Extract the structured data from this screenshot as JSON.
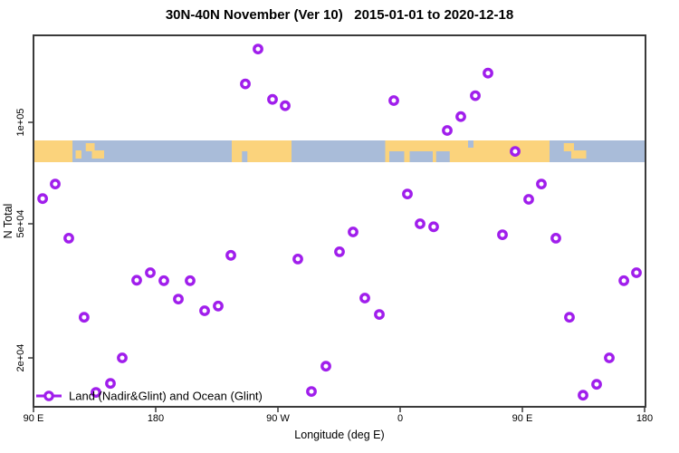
{
  "title": "30N-40N November (Ver 10)   2015-01-01 to 2020-12-18",
  "colors": {
    "marker": "#A01EEC",
    "ocean": "#A9BCD9",
    "land": "#FBD37C",
    "axis": "#3a3a3a",
    "text": "#000000"
  },
  "chart_data": {
    "type": "scatter",
    "title": "30N-40N November (Ver 10)   2015-01-01 to 2020-12-18",
    "xlabel": "Longitude (deg E)",
    "ylabel": "N Total",
    "grid": false,
    "legend_position": "bottom-left",
    "legend": {
      "label": "Land (Nadir&Glint) and Ocean (Glint)"
    },
    "x_axis": {
      "range_deg_e": [
        90,
        540
      ],
      "ticks": [
        {
          "lon": 90,
          "label": "90 E"
        },
        {
          "lon": 180,
          "label": "180"
        },
        {
          "lon": 270,
          "label": "90 W"
        },
        {
          "lon": 360,
          "label": "0"
        },
        {
          "lon": 450,
          "label": "90 E"
        },
        {
          "lon": 540,
          "label": "180"
        }
      ]
    },
    "y_axis": {
      "scale": "log10",
      "range": [
        14300,
        181000
      ],
      "ticks": [
        {
          "value": 100000,
          "label": "1e+05"
        },
        {
          "value": 50000,
          "label": "5e+04"
        },
        {
          "value": 20000,
          "label": "2e+04"
        }
      ]
    },
    "points": [
      {
        "lon": 96.7,
        "n": 59400
      },
      {
        "lon": 106.0,
        "n": 65600
      },
      {
        "lon": 116.0,
        "n": 45300
      },
      {
        "lon": 127.3,
        "n": 26400
      },
      {
        "lon": 136.0,
        "n": 15800
      },
      {
        "lon": 146.7,
        "n": 16800
      },
      {
        "lon": 155.3,
        "n": 20000
      },
      {
        "lon": 166.0,
        "n": 34000
      },
      {
        "lon": 176.0,
        "n": 35800
      },
      {
        "lon": 186.0,
        "n": 33900
      },
      {
        "lon": 196.7,
        "n": 29900
      },
      {
        "lon": 205.3,
        "n": 33900
      },
      {
        "lon": 216.0,
        "n": 27600
      },
      {
        "lon": 226.0,
        "n": 28500
      },
      {
        "lon": 235.3,
        "n": 40300
      },
      {
        "lon": 246.0,
        "n": 130000
      },
      {
        "lon": 255.3,
        "n": 165000
      },
      {
        "lon": 266.0,
        "n": 117000
      },
      {
        "lon": 275.3,
        "n": 112000
      },
      {
        "lon": 284.7,
        "n": 39300
      },
      {
        "lon": 294.7,
        "n": 15900
      },
      {
        "lon": 305.3,
        "n": 18900
      },
      {
        "lon": 315.3,
        "n": 41300
      },
      {
        "lon": 325.3,
        "n": 47300
      },
      {
        "lon": 334.0,
        "n": 30100
      },
      {
        "lon": 344.7,
        "n": 26900
      },
      {
        "lon": 355.3,
        "n": 116000
      },
      {
        "lon": 365.3,
        "n": 61300
      },
      {
        "lon": 374.7,
        "n": 50000
      },
      {
        "lon": 384.7,
        "n": 49000
      },
      {
        "lon": 394.7,
        "n": 94600
      },
      {
        "lon": 404.7,
        "n": 104000
      },
      {
        "lon": 415.3,
        "n": 120000
      },
      {
        "lon": 424.7,
        "n": 140000
      },
      {
        "lon": 435.3,
        "n": 46400
      },
      {
        "lon": 444.7,
        "n": 82000
      },
      {
        "lon": 454.7,
        "n": 59100
      },
      {
        "lon": 464.0,
        "n": 65600
      },
      {
        "lon": 474.7,
        "n": 45300
      },
      {
        "lon": 484.7,
        "n": 26400
      },
      {
        "lon": 494.7,
        "n": 15500
      },
      {
        "lon": 504.7,
        "n": 16700
      },
      {
        "lon": 514.0,
        "n": 20000
      },
      {
        "lon": 524.7,
        "n": 33900
      },
      {
        "lon": 534.0,
        "n": 35800
      }
    ],
    "map_band": {
      "description": "land-ocean strip for 30N-40N latitude belt",
      "land_segments": [
        {
          "from": 90,
          "to": 118.7
        },
        {
          "from": 236,
          "to": 280
        },
        {
          "from": 349,
          "to": 470
        }
      ],
      "island_patches": [
        {
          "from": 121,
          "to": 125.3
        },
        {
          "from": 128.5,
          "to": 135,
          "offset": "upper"
        },
        {
          "from": 133,
          "to": 142,
          "offset": "lower"
        },
        {
          "from": 480.5,
          "to": 488,
          "offset": "upper"
        },
        {
          "from": 486,
          "to": 497,
          "offset": "lower"
        }
      ],
      "sea_patches": [
        {
          "from": 243.5,
          "to": 247.5,
          "pos": "bottom"
        },
        {
          "from": 352,
          "to": 363,
          "pos": "bottom"
        },
        {
          "from": 367,
          "to": 384,
          "pos": "bottom"
        },
        {
          "from": 386.5,
          "to": 396.5,
          "pos": "bottom"
        },
        {
          "from": 410,
          "to": 414,
          "pos": "top"
        }
      ]
    }
  }
}
